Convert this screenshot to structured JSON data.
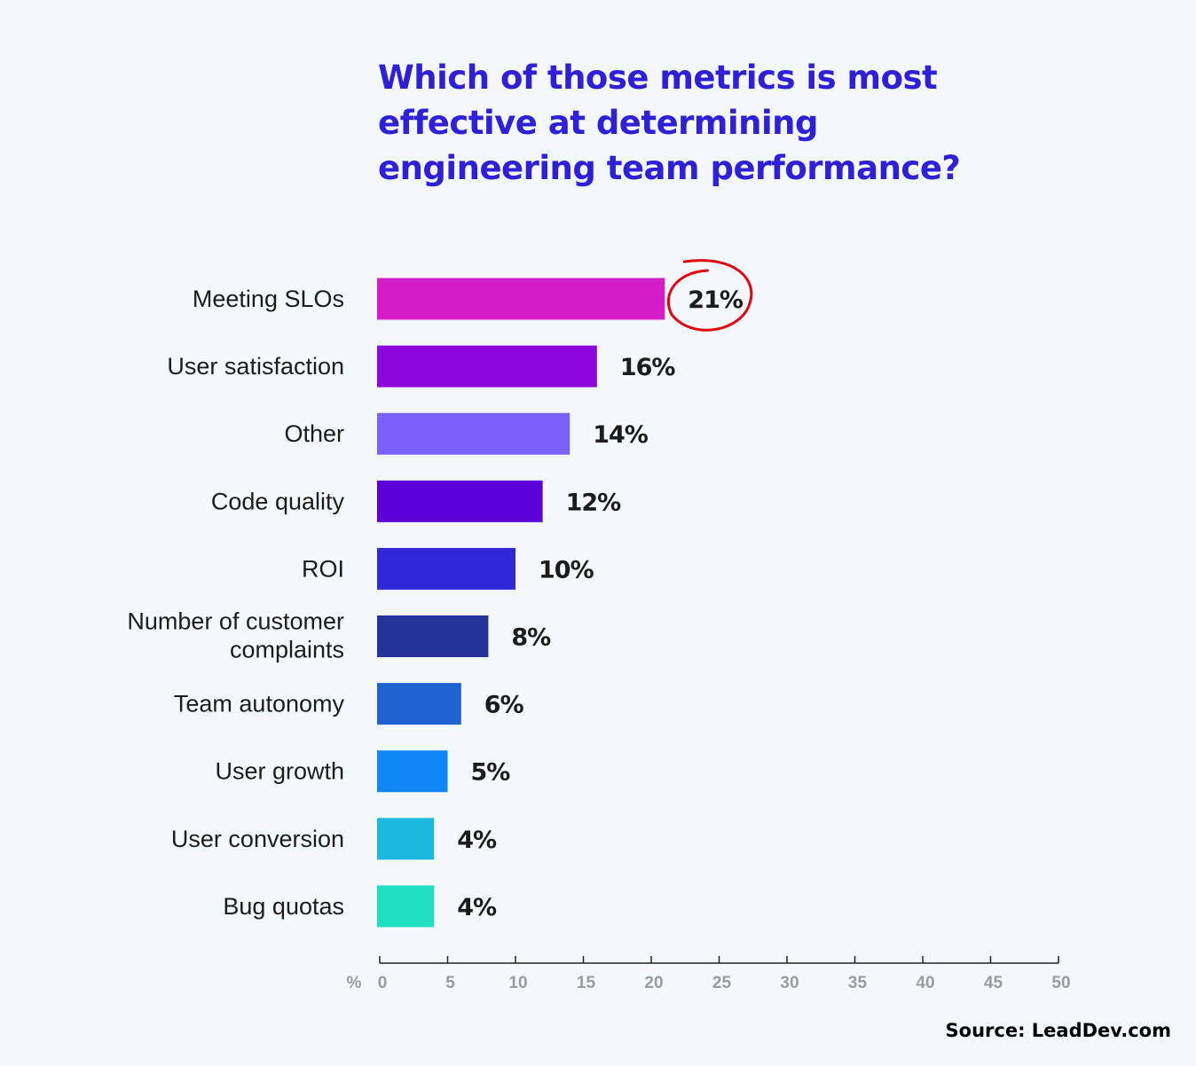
{
  "title": "Which of those metrics is most effective at determining engineering team performance?",
  "source": "Source: LeadDev.com",
  "chart_data": {
    "type": "bar",
    "orientation": "horizontal",
    "title": "Which of those metrics is most effective at determining engineering team performance?",
    "categories": [
      "Meeting SLOs",
      "User satisfaction",
      "Other",
      "Code quality",
      "ROI",
      "Number of customer complaints",
      "Team autonomy",
      "User growth",
      "User conversion",
      "Bug quotas"
    ],
    "values": [
      21,
      16,
      14,
      12,
      10,
      8,
      6,
      5,
      4,
      4
    ],
    "value_labels": [
      "21%",
      "16%",
      "14%",
      "12%",
      "10%",
      "8%",
      "6%",
      "5%",
      "4%",
      "4%"
    ],
    "colors": [
      "#d41cc8",
      "#8d06de",
      "#7b60fa",
      "#5c00d8",
      "#3027d8",
      "#24339a",
      "#1f63d3",
      "#0f88f5",
      "#1ab7de",
      "#1edfc0"
    ],
    "highlighted": "21%",
    "highlight_color": "#e3000f",
    "xlabel": "%",
    "xlim": [
      0,
      50
    ],
    "xticks": [
      0,
      5,
      10,
      15,
      20,
      25,
      30,
      35,
      40,
      45,
      50
    ],
    "grid": false,
    "legend": "none"
  }
}
